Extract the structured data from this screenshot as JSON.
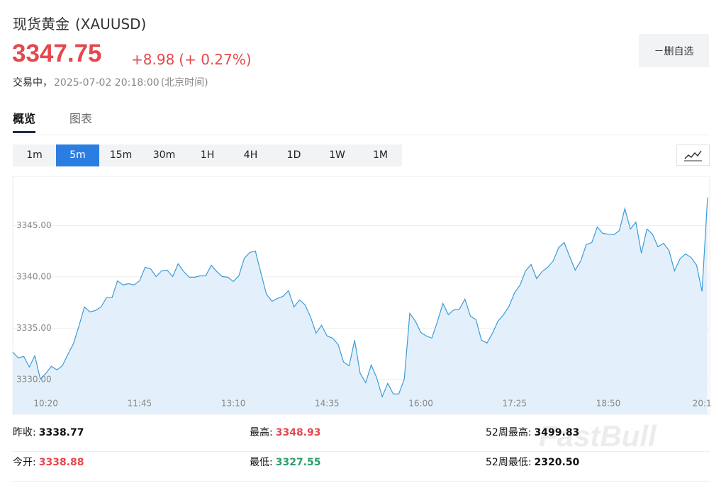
{
  "header": {
    "title": "现货黄金",
    "symbol": "(XAUUSD)",
    "price": "3347.75",
    "change": "+8.98",
    "change_percent": "(+ 0.27%)",
    "status": "交易中，",
    "datetime": "2025-07-02 20:18:00",
    "timezone": "(北京时间)",
    "watchlist_button": "－删自选"
  },
  "tabs": {
    "items": [
      "概览",
      "图表"
    ],
    "active": 0
  },
  "timeframes": {
    "items": [
      "1m",
      "5m",
      "15m",
      "30m",
      "1H",
      "4H",
      "1D",
      "1W",
      "1M"
    ],
    "active": 1
  },
  "chart_data": {
    "type": "area",
    "color": "#3d9bd6",
    "fill": "#e3f0fb",
    "grid": true,
    "ylim": [
      3326.6,
      3349.8
    ],
    "yticks": [
      {
        "value": 3330,
        "label": "3330.00"
      },
      {
        "value": 3335,
        "label": "3335.00"
      },
      {
        "value": 3340,
        "label": "3340.00"
      },
      {
        "value": 3345,
        "label": "3345.00"
      }
    ],
    "categories": [
      null,
      null,
      null,
      null,
      null,
      null,
      "10:20",
      null,
      null,
      null,
      null,
      null,
      null,
      null,
      null,
      null,
      null,
      null,
      null,
      null,
      null,
      null,
      null,
      "11:45",
      null,
      null,
      null,
      null,
      null,
      null,
      null,
      null,
      null,
      null,
      null,
      null,
      null,
      null,
      null,
      null,
      "13:10",
      null,
      null,
      null,
      null,
      null,
      null,
      null,
      null,
      null,
      null,
      null,
      null,
      null,
      null,
      null,
      null,
      "14:35",
      null,
      null,
      null,
      null,
      null,
      null,
      null,
      null,
      null,
      null,
      null,
      null,
      null,
      null,
      null,
      null,
      "16:00",
      null,
      null,
      null,
      null,
      null,
      null,
      null,
      null,
      null,
      null,
      null,
      null,
      null,
      null,
      null,
      null,
      "17:25",
      null,
      null,
      null,
      null,
      null,
      null,
      null,
      null,
      null,
      null,
      null,
      null,
      null,
      null,
      null,
      null,
      "18:50",
      null,
      null,
      null,
      null,
      null,
      null,
      null,
      null,
      null,
      null,
      null,
      null,
      null,
      null,
      null,
      null,
      "20:1",
      null
    ],
    "values": [
      3332.66,
      3332.1,
      3332.24,
      3331.21,
      3332.31,
      3330.03,
      3330.59,
      3331.28,
      3330.93,
      3331.34,
      3332.45,
      3333.48,
      3335.21,
      3337.07,
      3336.59,
      3336.72,
      3337.07,
      3337.97,
      3337.97,
      3339.62,
      3339.21,
      3339.34,
      3339.21,
      3339.62,
      3340.93,
      3340.79,
      3340.03,
      3340.59,
      3340.66,
      3340.03,
      3341.28,
      3340.52,
      3339.97,
      3339.97,
      3340.1,
      3340.1,
      3341.14,
      3340.52,
      3340.03,
      3339.97,
      3339.55,
      3340.1,
      3341.83,
      3342.38,
      3342.52,
      3340.38,
      3338.31,
      3337.62,
      3337.9,
      3338.1,
      3338.66,
      3337.07,
      3337.76,
      3337.28,
      3336.1,
      3334.52,
      3335.28,
      3334.24,
      3334.03,
      3333.41,
      3331.69,
      3331.34,
      3333.83,
      3330.59,
      3329.69,
      3331.41,
      3330.17,
      3328.31,
      3329.62,
      3328.59,
      3328.59,
      3330.03,
      3336.45,
      3335.69,
      3334.59,
      3334.24,
      3334.03,
      3335.62,
      3337.41,
      3336.31,
      3336.79,
      3336.86,
      3337.83,
      3336.17,
      3335.83,
      3333.83,
      3333.55,
      3334.52,
      3335.69,
      3336.31,
      3337.14,
      3338.45,
      3339.21,
      3340.59,
      3341.21,
      3339.83,
      3340.52,
      3340.93,
      3341.55,
      3342.86,
      3343.34,
      3341.97,
      3340.66,
      3341.55,
      3343.14,
      3343.34,
      3344.86,
      3344.24,
      3344.17,
      3344.1,
      3344.52,
      3346.66,
      3344.66,
      3345.34,
      3342.31,
      3344.66,
      3344.17,
      3342.93,
      3343.28,
      3342.59,
      3340.59,
      3341.76,
      3342.24,
      3341.9,
      3341.14,
      3338.59,
      3347.75
    ]
  },
  "stats": {
    "rows": [
      [
        {
          "label": "昨收:",
          "value": "3338.77",
          "color": "#111111"
        },
        {
          "label": "最高:",
          "value": "3348.93",
          "color": "#e5484d"
        },
        {
          "label": "52周最高:",
          "value": "3499.83",
          "color": "#111111"
        }
      ],
      [
        {
          "label": "今开:",
          "value": "3338.88",
          "color": "#e5484d"
        },
        {
          "label": "最低:",
          "value": "3327.55",
          "color": "#2a9d6a"
        },
        {
          "label": "52周最低:",
          "value": "2320.50",
          "color": "#111111"
        }
      ]
    ]
  },
  "watermark": "FastBull"
}
